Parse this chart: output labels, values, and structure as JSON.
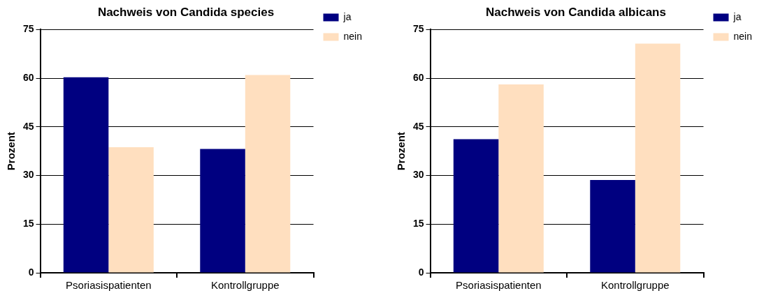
{
  "chart_data": [
    {
      "type": "bar",
      "title": "Nachweis von Candida species",
      "ylabel": "Prozent",
      "categories": [
        "Psoriasispatienten",
        "Kontrollgruppe"
      ],
      "series": [
        {
          "name": "ja",
          "color": "#000080",
          "values": [
            60.3,
            38.2
          ]
        },
        {
          "name": "nein",
          "color": "#ffdfbf",
          "values": [
            38.7,
            61.0
          ]
        }
      ],
      "ylim": [
        0,
        75
      ],
      "yticks": [
        0,
        15,
        30,
        45,
        60,
        75
      ],
      "grid": "y",
      "legend": "top right"
    },
    {
      "type": "bar",
      "title": "Nachweis von Candida albicans",
      "ylabel": "Prozent",
      "categories": [
        "Psoriasispatienten",
        "Kontrollgruppe"
      ],
      "series": [
        {
          "name": "ja",
          "color": "#000080",
          "values": [
            41.2,
            28.6
          ]
        },
        {
          "name": "nein",
          "color": "#ffdfbf",
          "values": [
            58.1,
            70.7
          ]
        }
      ],
      "ylim": [
        0,
        75
      ],
      "yticks": [
        0,
        15,
        30,
        45,
        60,
        75
      ],
      "grid": "y",
      "legend": "top right"
    }
  ]
}
